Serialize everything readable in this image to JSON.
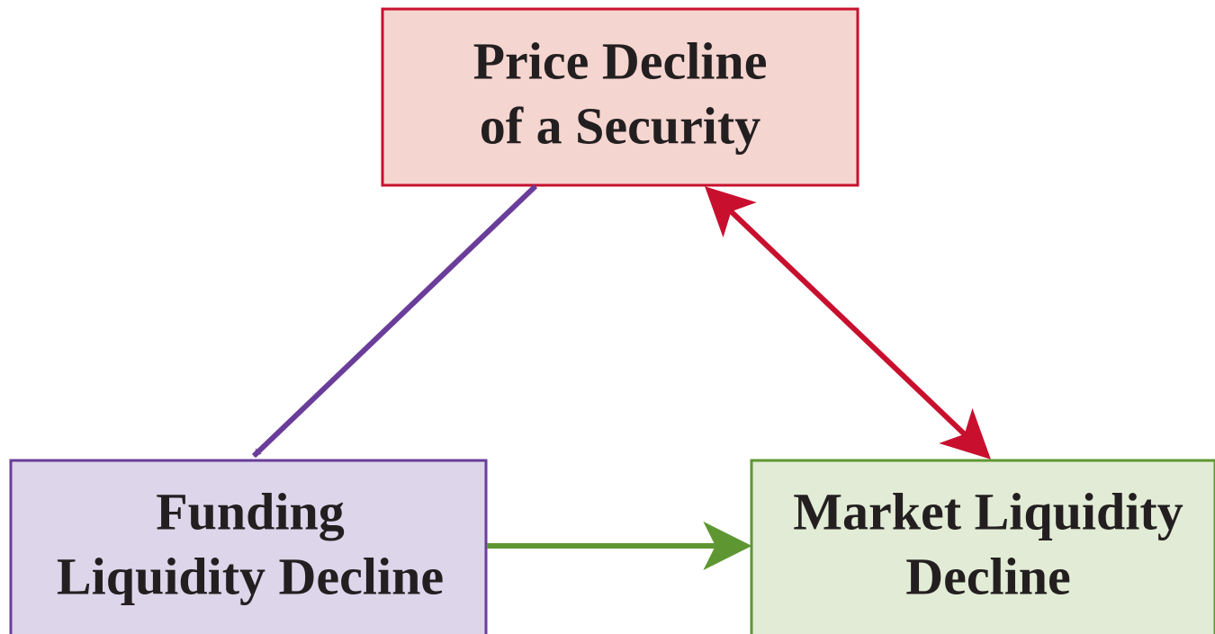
{
  "nodes": [
    {
      "label": [
        "Price Decline",
        "of a Security"
      ]
    },
    {
      "label": [
        "Funding",
        "Liquidity Decline"
      ]
    },
    {
      "label": [
        "Market Liquidity",
        "Decline"
      ]
    }
  ]
}
